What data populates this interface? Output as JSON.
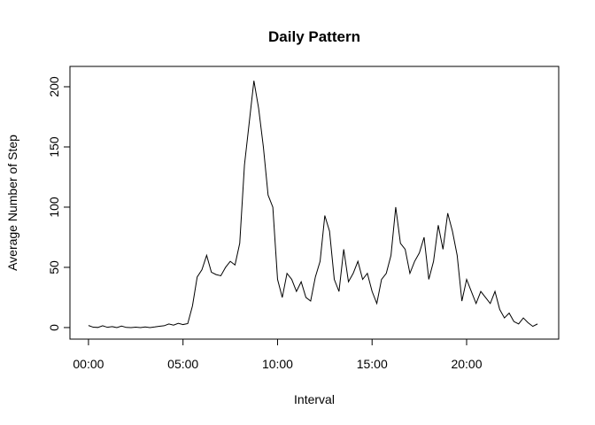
{
  "chart_data": {
    "type": "line",
    "title": "Daily Pattern",
    "x_label": "Interval",
    "y_label": "Average Number of Step",
    "x": [
      0,
      0.25,
      0.5,
      0.75,
      1,
      1.25,
      1.5,
      1.75,
      2,
      2.25,
      2.5,
      2.75,
      3,
      3.25,
      3.5,
      3.75,
      4,
      4.25,
      4.5,
      4.75,
      5,
      5.25,
      5.5,
      5.75,
      6,
      6.25,
      6.5,
      6.75,
      7,
      7.25,
      7.5,
      7.75,
      8,
      8.25,
      8.5,
      8.75,
      9,
      9.25,
      9.5,
      9.75,
      10,
      10.25,
      10.5,
      10.75,
      11,
      11.25,
      11.5,
      11.75,
      12,
      12.25,
      12.5,
      12.75,
      13,
      13.25,
      13.5,
      13.75,
      14,
      14.25,
      14.5,
      14.75,
      15,
      15.25,
      15.5,
      15.75,
      16,
      16.25,
      16.5,
      16.75,
      17,
      17.25,
      17.5,
      17.75,
      18,
      18.25,
      18.5,
      18.75,
      19,
      19.25,
      19.5,
      19.75,
      20,
      20.25,
      20.5,
      20.75,
      21,
      21.25,
      21.5,
      21.75,
      22,
      22.25,
      22.5,
      22.75,
      23,
      23.25,
      23.5,
      23.75
    ],
    "series": [
      {
        "name": "steps",
        "color": "#000000",
        "values": [
          1.7,
          0.3,
          0.1,
          1.5,
          0.2,
          0.8,
          0,
          1.2,
          0.1,
          0,
          0.3,
          0,
          0.5,
          0,
          0.5,
          1.1,
          1.5,
          3,
          2,
          3.5,
          2.5,
          3.3,
          18,
          42,
          48,
          60,
          46,
          44,
          43,
          50,
          55,
          52,
          70,
          135,
          170,
          205,
          182,
          150,
          110,
          100,
          40,
          25,
          45,
          40,
          30,
          38,
          25,
          22,
          42,
          55,
          93,
          80,
          40,
          30,
          65,
          38,
          45,
          55,
          40,
          45,
          30,
          20,
          40,
          45,
          60,
          100,
          70,
          65,
          45,
          55,
          62,
          75,
          40,
          55,
          85,
          65,
          95,
          80,
          60,
          22,
          40,
          30,
          20,
          30,
          25,
          20,
          30,
          15,
          8,
          12,
          5,
          3,
          8,
          4,
          1,
          3
        ]
      }
    ],
    "xlim": [
      -0.98,
      24.87
    ],
    "ylim": [
      -9.6,
      216.9
    ],
    "xticks": [
      {
        "value": 0,
        "label": "00:00"
      },
      {
        "value": 5,
        "label": "05:00"
      },
      {
        "value": 10,
        "label": "10:00"
      },
      {
        "value": 15,
        "label": "15:00"
      },
      {
        "value": 20,
        "label": "20:00"
      }
    ],
    "yticks": [
      0,
      50,
      100,
      150,
      200
    ]
  }
}
